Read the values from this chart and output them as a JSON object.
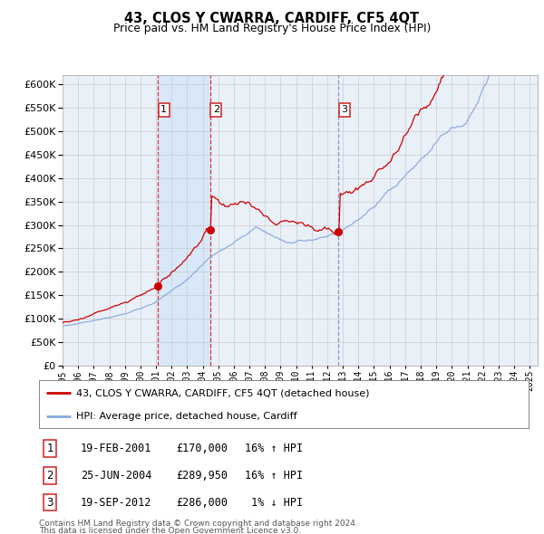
{
  "title": "43, CLOS Y CWARRA, CARDIFF, CF5 4QT",
  "subtitle": "Price paid vs. HM Land Registry's House Price Index (HPI)",
  "legend_line1": "43, CLOS Y CWARRA, CARDIFF, CF5 4QT (detached house)",
  "legend_line2": "HPI: Average price, detached house, Cardiff",
  "footer1": "Contains HM Land Registry data © Crown copyright and database right 2024.",
  "footer2": "This data is licensed under the Open Government Licence v3.0.",
  "sales": [
    {
      "num": "1",
      "date": "19-FEB-2001",
      "price": "£170,000",
      "hpi_txt": "16% ↑ HPI",
      "year": 2001.12,
      "price_val": 170000
    },
    {
      "num": "2",
      "date": "25-JUN-2004",
      "price": "£289,950",
      "hpi_txt": "16% ↑ HPI",
      "year": 2004.48,
      "price_val": 289950
    },
    {
      "num": "3",
      "date": "19-SEP-2012",
      "price": "£286,000",
      "hpi_txt": " 1% ↓ HPI",
      "year": 2012.72,
      "price_val": 286000
    }
  ],
  "ylim": [
    0,
    620000
  ],
  "yticks": [
    0,
    50000,
    100000,
    150000,
    200000,
    250000,
    300000,
    350000,
    400000,
    450000,
    500000,
    550000,
    600000
  ],
  "xlim": [
    1995.0,
    2025.5
  ],
  "xticks": [
    1995,
    1996,
    1997,
    1998,
    1999,
    2000,
    2001,
    2002,
    2003,
    2004,
    2005,
    2006,
    2007,
    2008,
    2009,
    2010,
    2011,
    2012,
    2013,
    2014,
    2015,
    2016,
    2017,
    2018,
    2019,
    2020,
    2021,
    2022,
    2023,
    2024,
    2025
  ],
  "red_color": "#cc0000",
  "blue_color": "#88aadd",
  "shade_color": "#d8e8f8",
  "chart_bg": "#eaf0f8",
  "grid_color": "#c8c8c8",
  "vline1_color": "#dd2222",
  "vline3_color": "#8888bb"
}
